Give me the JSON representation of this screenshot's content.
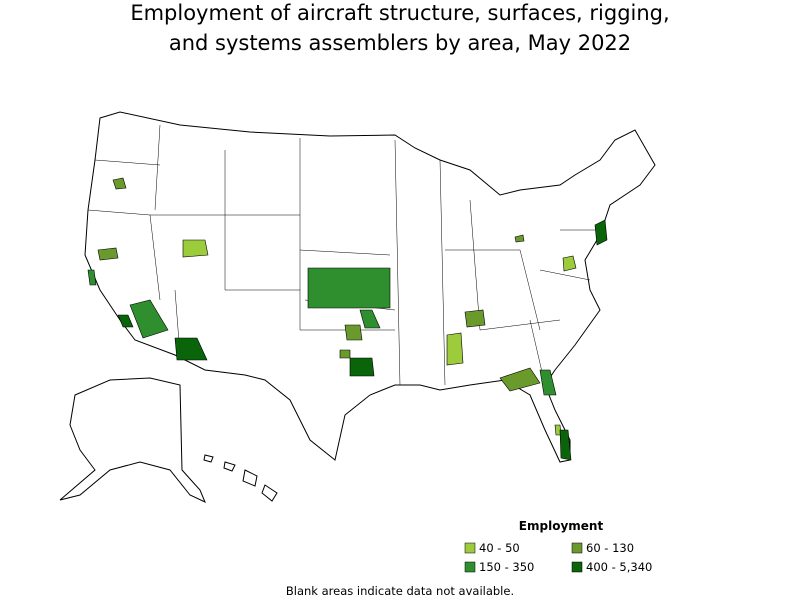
{
  "title": [
    "Employment of aircraft structure, surfaces, rigging,",
    "and systems assemblers by area, May 2022"
  ],
  "legend": {
    "title": "Employment",
    "items": [
      {
        "label": "40 - 50",
        "color": "#9ccc3c"
      },
      {
        "label": "60 - 130",
        "color": "#6b9a2c"
      },
      {
        "label": "150 - 350",
        "color": "#2f8f2f"
      },
      {
        "label": "400 - 5,340",
        "color": "#0a640a"
      }
    ]
  },
  "note": "Blank areas indicate data not available."
}
